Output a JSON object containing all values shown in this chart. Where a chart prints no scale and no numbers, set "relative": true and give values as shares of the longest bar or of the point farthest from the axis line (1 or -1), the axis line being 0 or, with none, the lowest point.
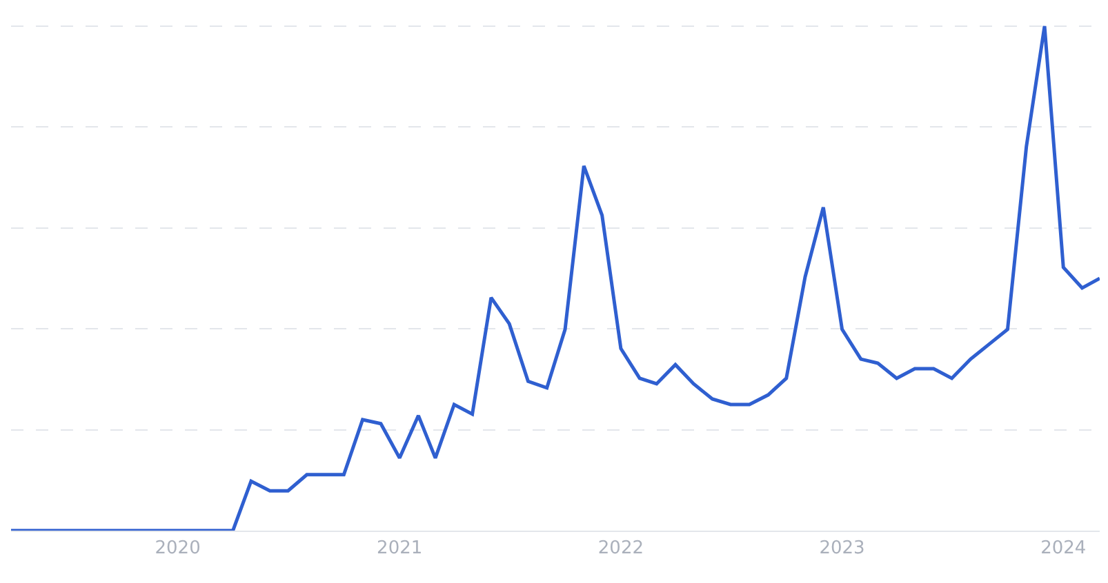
{
  "chart_data": {
    "type": "line",
    "relative": true,
    "grid": "y",
    "marker": "none",
    "line_style": "solid",
    "x": [
      "2019-04",
      "2019-05",
      "2019-06",
      "2019-07",
      "2019-08",
      "2019-09",
      "2019-10",
      "2019-11",
      "2019-12",
      "2020-01",
      "2020-02",
      "2020-03",
      "2020-04",
      "2020-05",
      "2020-06",
      "2020-07",
      "2020-08",
      "2020-09",
      "2020-10",
      "2020-11",
      "2020-12",
      "2021-01",
      "2021-02",
      "2021-03",
      "2021-04",
      "2021-05",
      "2021-06",
      "2021-07",
      "2021-08",
      "2021-09",
      "2021-10",
      "2021-11",
      "2021-12",
      "2022-01",
      "2022-02",
      "2022-03",
      "2022-04",
      "2022-05",
      "2022-06",
      "2022-07",
      "2022-08",
      "2022-09",
      "2022-10",
      "2022-11",
      "2022-12",
      "2023-01",
      "2023-02",
      "2023-03",
      "2023-04",
      "2023-05",
      "2023-06",
      "2023-07",
      "2023-08",
      "2023-09",
      "2023-10",
      "2023-11",
      "2023-12",
      "2024-01",
      "2024-02",
      "2024-03"
    ],
    "xlim": [
      "2019-04",
      "2024-03"
    ],
    "xticks": [
      {
        "value": "2020-01",
        "label": "2020"
      },
      {
        "value": "2021-01",
        "label": "2021"
      },
      {
        "value": "2022-01",
        "label": "2022"
      },
      {
        "value": "2023-01",
        "label": "2023"
      },
      {
        "value": "2024-01",
        "label": "2024"
      }
    ],
    "series": [
      {
        "color": "#2f5fd0",
        "values": [
          0,
          0,
          0,
          0,
          0,
          0,
          0,
          0,
          0,
          0,
          0,
          0,
          0,
          0.098,
          0.079,
          0.079,
          0.111,
          0.111,
          0.111,
          0.22,
          0.212,
          0.144,
          0.228,
          0.144,
          0.25,
          0.231,
          0.462,
          0.41,
          0.296,
          0.283,
          0.399,
          0.723,
          0.625,
          0.361,
          0.302,
          0.291,
          0.329,
          0.291,
          0.261,
          0.25,
          0.25,
          0.269,
          0.302,
          0.503,
          0.641,
          0.399,
          0.34,
          0.332,
          0.302,
          0.321,
          0.321,
          0.302,
          0.34,
          0.37,
          0.399,
          0.761,
          1,
          0.522,
          0.481,
          0.5
        ]
      }
    ]
  }
}
